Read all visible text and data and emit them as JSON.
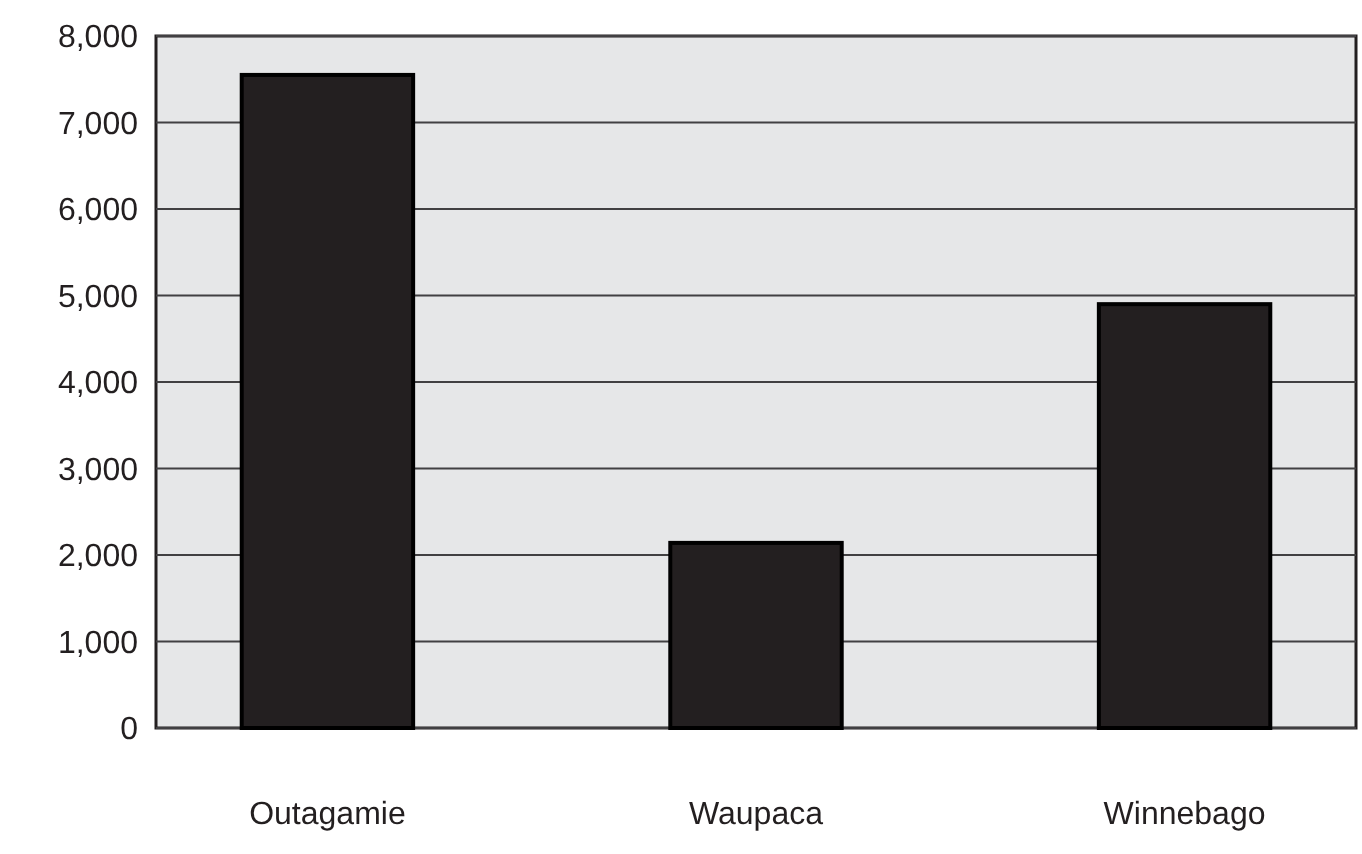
{
  "chart_data": {
    "type": "bar",
    "categories": [
      "Outagamie",
      "Waupaca",
      "Winnebago"
    ],
    "values": [
      7550,
      2140,
      4900
    ],
    "color": "#231f20",
    "ylim": [
      0,
      8000
    ],
    "yticks": [
      {
        "value": 0,
        "label": "0"
      },
      {
        "value": 1000,
        "label": "1,000"
      },
      {
        "value": 2000,
        "label": "2,000"
      },
      {
        "value": 3000,
        "label": "3,000"
      },
      {
        "value": 4000,
        "label": "4,000"
      },
      {
        "value": 5000,
        "label": "5,000"
      },
      {
        "value": 6000,
        "label": "6,000"
      },
      {
        "value": 7000,
        "label": "7,000"
      },
      {
        "value": 8000,
        "label": "8,000"
      }
    ],
    "grid": "y"
  }
}
